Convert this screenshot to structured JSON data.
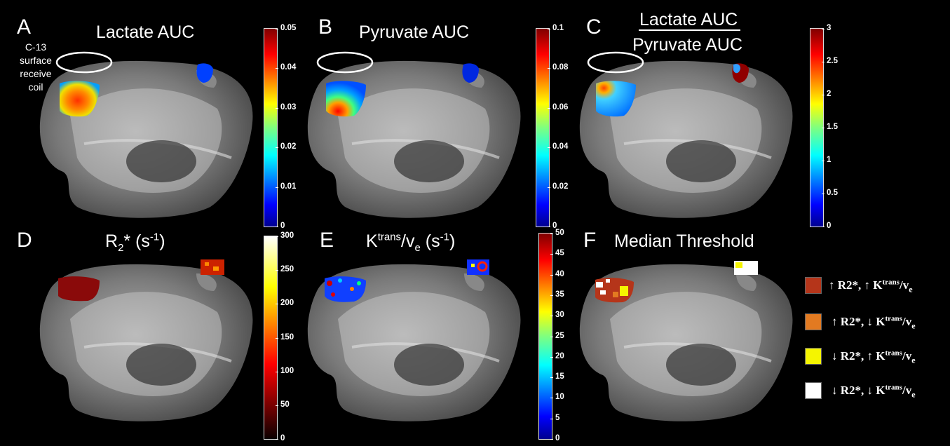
{
  "panels": {
    "a": {
      "letter": "A",
      "title": "Lactate AUC"
    },
    "b": {
      "letter": "B",
      "title": "Pyruvate AUC"
    },
    "c": {
      "letter": "C",
      "title_numerator": "Lactate AUC",
      "title_denominator": "Pyruvate AUC"
    },
    "d": {
      "letter": "D",
      "title_main": "R",
      "title_sub": "2",
      "title_rest": "* (s",
      "title_sup": "-1",
      "title_end": ")"
    },
    "e": {
      "letter": "E",
      "title_main": "K",
      "title_sup1": "trans",
      "title_mid": "/v",
      "title_sub": "e",
      "title_rest": " (s",
      "title_sup2": "-1",
      "title_end": ")"
    },
    "f": {
      "letter": "F",
      "title": "Median Threshold"
    }
  },
  "coil_label": {
    "line1": "C-13",
    "line2": "surface",
    "line3": "receive",
    "line4": "coil"
  },
  "colorbars": {
    "a": {
      "colormap": "jet",
      "ticks": [
        "0.05",
        "0.04",
        "0.03",
        "0.02",
        "0.01",
        "0"
      ]
    },
    "b": {
      "colormap": "jet",
      "ticks": [
        "0.1",
        "0.08",
        "0.06",
        "0.04",
        "0.02",
        "0"
      ]
    },
    "c": {
      "colormap": "jet",
      "ticks": [
        "3",
        "2.5",
        "2",
        "1.5",
        "1",
        "0.5",
        "0"
      ]
    },
    "d": {
      "colormap": "hot",
      "ticks": [
        "300",
        "250",
        "200",
        "150",
        "100",
        "50",
        "0"
      ]
    },
    "e": {
      "colormap": "jet",
      "ticks": [
        "50",
        "45",
        "40",
        "35",
        "30",
        "25",
        "20",
        "15",
        "10",
        "5",
        "0"
      ]
    }
  },
  "legend": [
    {
      "arrow1": "↑",
      "arrow2": "↑",
      "color": "#b5351a"
    },
    {
      "arrow1": "↑",
      "arrow2": "↓",
      "color": "#e27a21"
    },
    {
      "arrow1": "↓",
      "arrow2": "↑",
      "color": "#f5f500"
    },
    {
      "arrow1": "↓",
      "arrow2": "↓",
      "color": "#ffffff"
    }
  ],
  "legend_text": {
    "r2": "R2*,",
    "k": "K",
    "trans": "trans",
    "slash_v": "/v",
    "e": "e"
  },
  "colors": {
    "background": "#000000",
    "brain_tissue": "#9a9a9a"
  }
}
